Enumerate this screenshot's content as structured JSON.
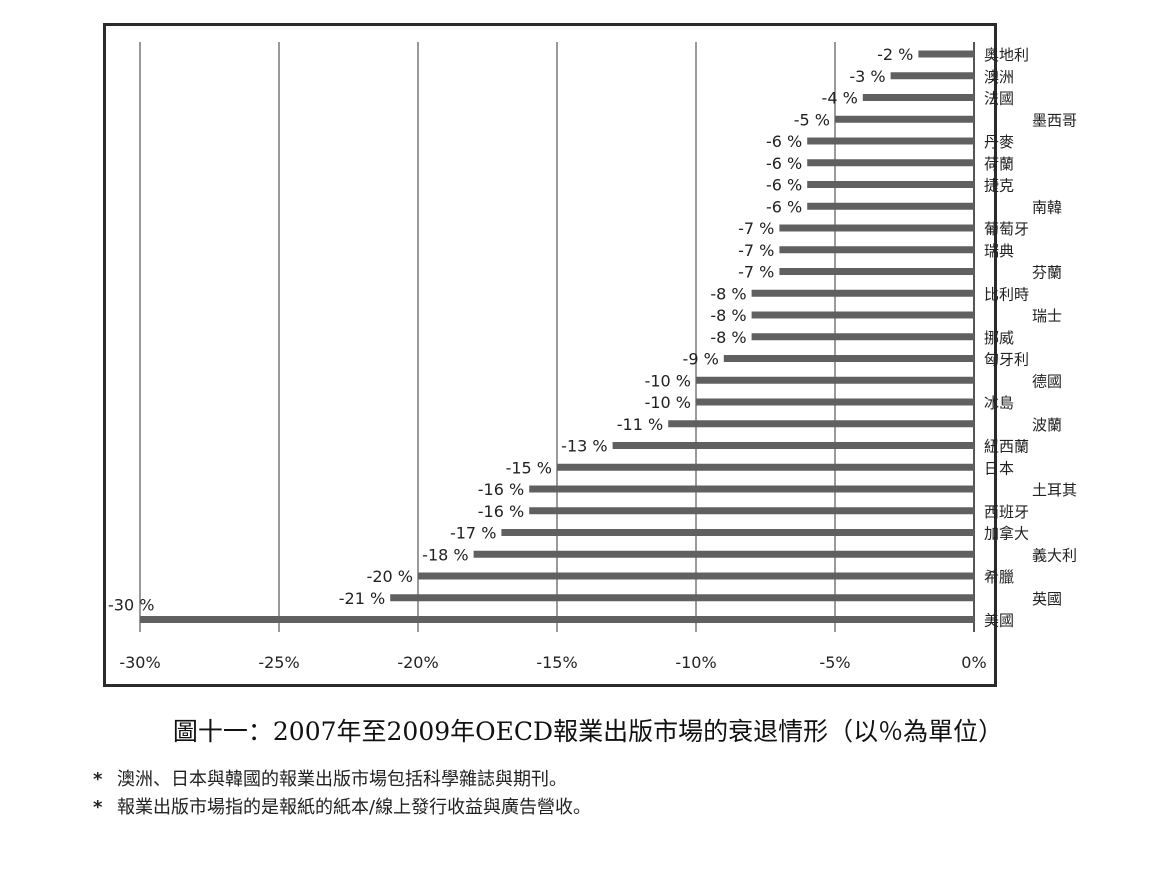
{
  "chart_data": {
    "type": "bar",
    "orientation": "horizontal",
    "xlim": [
      -30,
      0
    ],
    "x_ticks": [
      "-30%",
      "-25%",
      "-20%",
      "-15%",
      "-10%",
      "-5%",
      "0%"
    ],
    "grid": "vertical",
    "categories": [
      "奧地利",
      "澳洲",
      "法國",
      "墨西哥",
      "丹麥",
      "荷蘭",
      "捷克",
      "南韓",
      "葡萄牙",
      "瑞典",
      "芬蘭",
      "比利時",
      "瑞士",
      "挪威",
      "匈牙利",
      "德國",
      "冰島",
      "波蘭",
      "紐西蘭",
      "日本",
      "土耳其",
      "西班牙",
      "加拿大",
      "義大利",
      "希臘",
      "英國",
      "美國"
    ],
    "values": [
      -2,
      -3,
      -4,
      -5,
      -6,
      -6,
      -6,
      -6,
      -7,
      -7,
      -7,
      -8,
      -8,
      -8,
      -9,
      -10,
      -10,
      -11,
      -13,
      -15,
      -16,
      -16,
      -17,
      -18,
      -20,
      -21,
      -30
    ],
    "labels": [
      "-2 %",
      "-3 %",
      "-4 %",
      "-5 %",
      "-6 %",
      "-6 %",
      "-6 %",
      "-6 %",
      "-7 %",
      "-7 %",
      "-7 %",
      "-8 %",
      "-8 %",
      "-8 %",
      "-9 %",
      "-10 %",
      "-10 %",
      "-11 %",
      "-13 %",
      "-15 %",
      "-16 %",
      "-16 %",
      "-17 %",
      "-18 %",
      "-20 %",
      "-21 %",
      "-30 %"
    ],
    "bar_color": "#606060",
    "grid_color": "#9a9a9a"
  },
  "caption": "圖十一：2007年至2009年OECD報業出版市場的衰退情形（以％為單位）",
  "notes": [
    {
      "star": "*",
      "text": "澳洲、日本與韓國的報業出版市場包括科學雜誌與期刊。"
    },
    {
      "star": "*",
      "text": "報業出版市場指的是報紙的紙本/線上發行收益與廣告營收。"
    }
  ]
}
